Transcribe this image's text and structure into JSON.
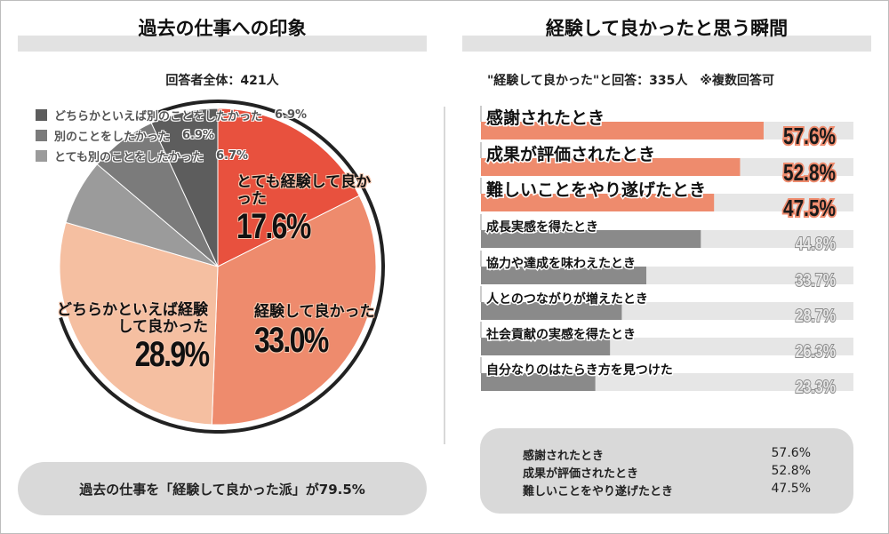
{
  "left": {
    "title": "過去の仕事への印象",
    "respondents": "回答者全体：421人",
    "summary": "過去の仕事を「経験して良かった派」が79.5%"
  },
  "right": {
    "title": "経験して良かったと思う瞬間",
    "respondents": "\"経験して良かった\"と回答：335人　※複数回答可",
    "summary": [
      {
        "label": "感謝されたとき",
        "value": "57.6%"
      },
      {
        "label": "成果が評価されたとき",
        "value": "52.8%"
      },
      {
        "label": "難しいことをやり遂げたとき",
        "value": "47.5%"
      }
    ]
  },
  "chart_data": [
    {
      "type": "pie",
      "title": "過去の仕事への印象",
      "slices": [
        {
          "label": "とても経験して良かった",
          "value": 17.6,
          "display": "17.6%",
          "color": "#e8513e"
        },
        {
          "label": "経験して良かった",
          "value": 33.0,
          "display": "33.0%",
          "color": "#ee8b6d"
        },
        {
          "label": "どちらかといえば経験して良かった",
          "value": 28.9,
          "display": "28.9%",
          "color": "#f5bfa1"
        },
        {
          "label": "とても別のことをしたかった",
          "value": 6.7,
          "display": "6.7%",
          "color": "#9b9b9b"
        },
        {
          "label": "別のことをしたかった",
          "value": 6.9,
          "display": "6.9%",
          "color": "#7b7b7b"
        },
        {
          "label": "どちらかといえば別のことをしたかった",
          "value": 6.9,
          "display": "6.9%",
          "color": "#5d5d5d"
        }
      ],
      "legend": "top-left"
    },
    {
      "type": "bar",
      "orientation": "horizontal",
      "title": "経験して良かったと思う瞬間",
      "categories": [
        "感謝されたとき",
        "成果が評価されたとき",
        "難しいことをやり遂げたとき",
        "成長実感を得たとき",
        "協力や達成を味わえたとき",
        "人とのつながりが増えたとき",
        "社会貢献の実感を得たとき",
        "自分なりのはたらき方を見つけた"
      ],
      "values": [
        57.6,
        52.8,
        47.5,
        44.8,
        33.7,
        28.7,
        26.3,
        23.3
      ],
      "labels": [
        "57.6%",
        "52.8%",
        "47.5%",
        "44.8%",
        "33.7%",
        "28.7%",
        "26.3%",
        "23.3%"
      ],
      "highlight_color": "#ee8b6d",
      "default_color": "#8a8a8a",
      "track_color": "#e6e6e6"
    }
  ]
}
